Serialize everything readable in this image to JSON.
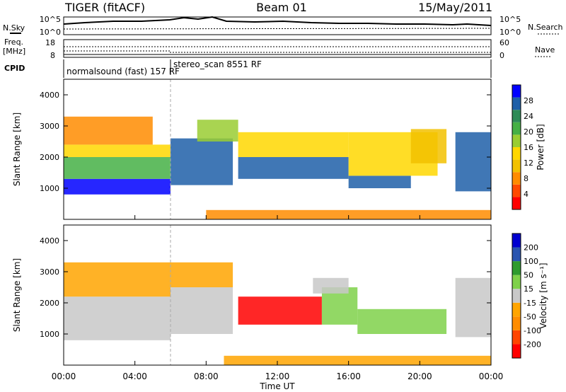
{
  "header": {
    "station": "TIGER (fitACF)",
    "beam": "Beam 01",
    "date": "15/May/2011"
  },
  "top_panels": {
    "nsky_label": "N.Sky",
    "nsky_ticks": [
      "10^5",
      "10^0"
    ],
    "nsearch_label": "N.Search",
    "nsearch_ticks": [
      "10^5",
      "10^0"
    ],
    "freq_label": [
      "Freq.",
      "[MHz]"
    ],
    "freq_ticks": [
      "18",
      "8"
    ],
    "nave_label": "Nave",
    "nave_ticks": [
      "60",
      "0"
    ],
    "cpid_label": "CPID",
    "cpid_text": [
      "normalsound (fast) 157 RF",
      "stereo_scan 8551 RF"
    ]
  },
  "chart_data": [
    {
      "type": "heatmap",
      "quantity": "Power",
      "ylabel": "Slant Range [km]",
      "ylim": [
        0,
        4500
      ],
      "yticks": [
        "1000",
        "2000",
        "3000",
        "4000"
      ],
      "xlabel": "Time UT",
      "xlim": [
        0,
        24
      ],
      "xticks": [
        "00:00",
        "04:00",
        "08:00",
        "12:00",
        "16:00",
        "20:00",
        "00:00"
      ],
      "colorbar": {
        "label": "Power [dB]",
        "ticks": [
          "28",
          "24",
          "20",
          "16",
          "12",
          "8",
          "4"
        ],
        "range": [
          0,
          30
        ],
        "colors": [
          "#ff0000",
          "#ff4a00",
          "#ff8c00",
          "#f2c100",
          "#ffd700",
          "#9acd32",
          "#45b045",
          "#2e8b57",
          "#1e5fa8",
          "#0000ff"
        ]
      },
      "regions": [
        {
          "t": [
            0.0,
            6.0
          ],
          "r": [
            800,
            1300
          ],
          "level": 28
        },
        {
          "t": [
            0.0,
            6.0
          ],
          "r": [
            1300,
            2000
          ],
          "level": 20
        },
        {
          "t": [
            0.0,
            6.0
          ],
          "r": [
            2000,
            2400
          ],
          "level": 12
        },
        {
          "t": [
            0.0,
            5.0
          ],
          "r": [
            2400,
            3300
          ],
          "level": 8
        },
        {
          "t": [
            6.0,
            9.5
          ],
          "r": [
            1100,
            2600
          ],
          "level": 24
        },
        {
          "t": [
            7.5,
            9.8
          ],
          "r": [
            2500,
            3200
          ],
          "level": 16
        },
        {
          "t": [
            9.8,
            16.0
          ],
          "r": [
            1300,
            2000
          ],
          "level": 26
        },
        {
          "t": [
            9.8,
            16.0
          ],
          "r": [
            2000,
            2800
          ],
          "level": 14
        },
        {
          "t": [
            16.0,
            19.5
          ],
          "r": [
            1000,
            1400
          ],
          "level": 26
        },
        {
          "t": [
            16.0,
            21.0
          ],
          "r": [
            1400,
            2800
          ],
          "level": 12
        },
        {
          "t": [
            19.5,
            21.5
          ],
          "r": [
            1800,
            2900
          ],
          "level": 9
        },
        {
          "t": [
            22.0,
            24.0
          ],
          "r": [
            900,
            2800
          ],
          "level": 26
        },
        {
          "t": [
            8.0,
            24.0
          ],
          "r": [
            0,
            300
          ],
          "level": 8
        }
      ]
    },
    {
      "type": "heatmap",
      "quantity": "Velocity",
      "ylabel": "Slant Range [km]",
      "ylim": [
        0,
        4500
      ],
      "yticks": [
        "1000",
        "2000",
        "3000",
        "4000"
      ],
      "xlabel": "Time UT",
      "xlim": [
        0,
        24
      ],
      "xticks": [
        "00:00",
        "04:00",
        "08:00",
        "12:00",
        "16:00",
        "20:00",
        "00:00"
      ],
      "colorbar": {
        "label": "Velocity [m s⁻¹]",
        "ticks": [
          "200",
          "100",
          "50",
          "15",
          "-15",
          "-50",
          "-100",
          "-200"
        ],
        "range": [
          -250,
          250
        ],
        "colors": [
          "#ff0000",
          "#ff4500",
          "#ff8c00",
          "#ffa500",
          "#c8c8c8",
          "#7fd14a",
          "#2e9b2e",
          "#2a55b0",
          "#0000d0"
        ]
      },
      "regions": [
        {
          "t": [
            0.0,
            6.0
          ],
          "r": [
            800,
            2200
          ],
          "level": 0
        },
        {
          "t": [
            0.0,
            6.0
          ],
          "r": [
            2200,
            3300
          ],
          "level": -30
        },
        {
          "t": [
            6.0,
            9.5
          ],
          "r": [
            1000,
            2500
          ],
          "level": 0
        },
        {
          "t": [
            6.0,
            9.5
          ],
          "r": [
            2500,
            3300
          ],
          "level": -60
        },
        {
          "t": [
            9.8,
            14.5
          ],
          "r": [
            1300,
            2200
          ],
          "level": -220
        },
        {
          "t": [
            14.5,
            16.5
          ],
          "r": [
            1300,
            2500
          ],
          "level": 80
        },
        {
          "t": [
            16.5,
            21.5
          ],
          "r": [
            1000,
            1800
          ],
          "level": 60
        },
        {
          "t": [
            14.0,
            16.0
          ],
          "r": [
            2300,
            2800
          ],
          "level": 0
        },
        {
          "t": [
            22.0,
            24.0
          ],
          "r": [
            900,
            2800
          ],
          "level": 20
        },
        {
          "t": [
            9.0,
            24.0
          ],
          "r": [
            0,
            300
          ],
          "level": -60
        }
      ]
    }
  ]
}
